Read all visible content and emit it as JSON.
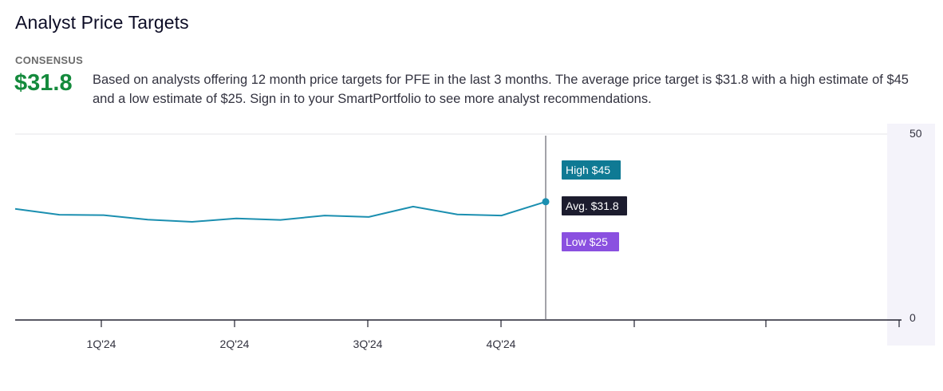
{
  "header": {
    "title": "Analyst Price Targets",
    "consensus_label": "CONSENSUS",
    "consensus_value": "$31.8",
    "description": "Based on analysts offering 12 month price targets for PFE in the last 3 months. The average price target is $31.8 with a high estimate of $45 and a low estimate of $25. Sign in to your SmartPortfolio to see more analyst recommendations."
  },
  "chart_data": {
    "type": "line",
    "title": "",
    "xlabel": "",
    "ylabel": "",
    "ylim": [
      0,
      50
    ],
    "y_ticks": [
      "50",
      "0"
    ],
    "x_tick_labels": [
      "1Q'24",
      "2Q'24",
      "3Q'24",
      "4Q'24"
    ],
    "series": [
      {
        "name": "Average Price Target",
        "color": "#1b8fb0",
        "values": [
          29.9,
          28.3,
          28.2,
          27.0,
          26.4,
          27.3,
          26.9,
          28.1,
          27.7,
          30.5,
          28.4,
          28.1,
          31.8
        ]
      }
    ],
    "forecast": {
      "high": {
        "label": "High $45",
        "value": 45,
        "color": "#0f7a94"
      },
      "average": {
        "label": "Avg. $31.8",
        "value": 31.8,
        "color": "#1c1c2e"
      },
      "low": {
        "label": "Low $25",
        "value": 25,
        "color": "#8a50e0"
      }
    },
    "gridlines": true
  }
}
